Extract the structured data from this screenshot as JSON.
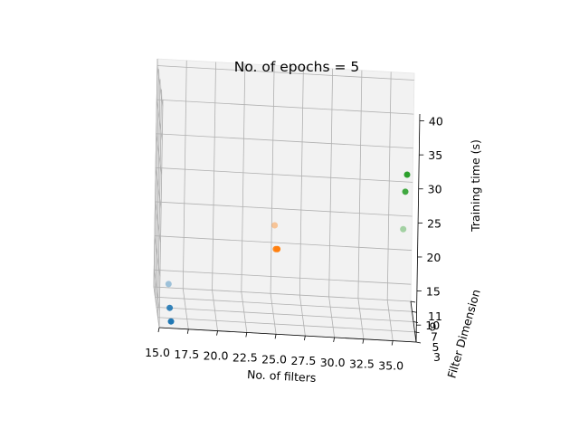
{
  "chart_data": {
    "type": "scatter",
    "title": "No. of epochs = 5",
    "xlabel": "No. of filters",
    "ylabel": "Filter Dimension",
    "zlabel": "Training time (s)",
    "x_ticks": [
      "15.0",
      "17.5",
      "20.0",
      "22.5",
      "25.0",
      "27.5",
      "30.0",
      "32.5",
      "35.0"
    ],
    "y_ticks": [
      "3",
      "5",
      "7",
      "9",
      "11"
    ],
    "z_ticks": [
      "10",
      "15",
      "20",
      "25",
      "30",
      "35",
      "40"
    ],
    "xlim": [
      15,
      37
    ],
    "ylim": [
      3,
      11
    ],
    "zlim": [
      7.5,
      41
    ],
    "grid": true,
    "projection": "3d",
    "series": [
      {
        "color": "#1f77b4",
        "points": [
          {
            "x": 16,
            "y": 3,
            "z": 8.5
          },
          {
            "x": 16,
            "y": 5,
            "z": 9.0
          },
          {
            "x": 16,
            "y": 7,
            "z": 11.0
          }
        ]
      },
      {
        "color": "#ff7f0e",
        "points": [
          {
            "x": 25,
            "y": 3,
            "z": 20.0
          },
          {
            "x": 25,
            "y": 5,
            "z": 18.5
          },
          {
            "x": 25,
            "y": 7,
            "z": 20.5
          }
        ]
      },
      {
        "color": "#2ca02c",
        "points": [
          {
            "x": 36,
            "y": 3,
            "z": 32.0
          },
          {
            "x": 36,
            "y": 5,
            "z": 28.0
          },
          {
            "x": 36,
            "y": 7,
            "z": 21.0
          }
        ]
      }
    ]
  }
}
